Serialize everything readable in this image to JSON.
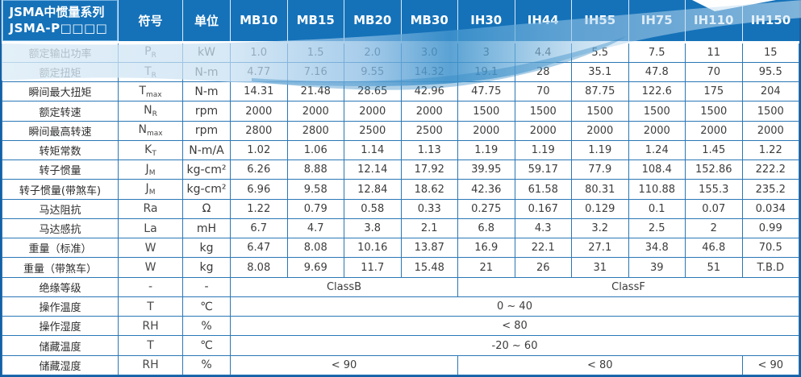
{
  "table": {
    "header": {
      "series_title_line1": "JSMA中惯量系列",
      "series_title_line2": "JSMA-P□□□□",
      "symbol_col": "符号",
      "unit_col": "单位",
      "models": [
        "MB10",
        "MB15",
        "MB20",
        "MB30",
        "IH30",
        "IH44",
        "IH55",
        "IH75",
        "IH110",
        "IH150"
      ]
    },
    "rows": [
      {
        "label": "额定输出功率",
        "symbol": "P",
        "sub": "R",
        "unit": "kW",
        "values": [
          "1.0",
          "1.5",
          "2.0",
          "3.0",
          "3",
          "4.4",
          "5.5",
          "7.5",
          "11",
          "15"
        ]
      },
      {
        "label": "额定扭矩",
        "symbol": "T",
        "sub": "R",
        "unit": "N-m",
        "values": [
          "4.77",
          "7.16",
          "9.55",
          "14.32",
          "19.1",
          "28",
          "35.1",
          "47.8",
          "70",
          "95.5"
        ]
      },
      {
        "label": "瞬间最大扭矩",
        "symbol": "T",
        "sub": "max",
        "unit": "N-m",
        "values": [
          "14.31",
          "21.48",
          "28.65",
          "42.96",
          "47.75",
          "70",
          "87.75",
          "122.6",
          "175",
          "204"
        ]
      },
      {
        "label": "额定转速",
        "symbol": "N",
        "sub": "R",
        "unit": "rpm",
        "values": [
          "2000",
          "2000",
          "2000",
          "2000",
          "1500",
          "1500",
          "1500",
          "1500",
          "1500",
          "1500"
        ]
      },
      {
        "label": "瞬间最高转速",
        "symbol": "N",
        "sub": "max",
        "unit": "rpm",
        "values": [
          "2800",
          "2800",
          "2500",
          "2500",
          "2000",
          "2000",
          "2000",
          "2000",
          "2000",
          "2000"
        ]
      },
      {
        "label": "转矩常数",
        "symbol": "K",
        "sub": "T",
        "unit": "N-m/A",
        "values": [
          "1.02",
          "1.06",
          "1.14",
          "1.13",
          "1.19",
          "1.19",
          "1.19",
          "1.24",
          "1.45",
          "1.22"
        ]
      },
      {
        "label": "转子惯量",
        "symbol": "J",
        "sub": "M",
        "unit": "kg-cm²",
        "values": [
          "6.26",
          "8.88",
          "12.14",
          "17.92",
          "39.95",
          "59.17",
          "77.9",
          "108.4",
          "152.86",
          "222.2"
        ]
      },
      {
        "label": "转子惯量(带煞车)",
        "symbol": "J",
        "sub": "M",
        "unit": "kg-cm²",
        "values": [
          "6.96",
          "9.58",
          "12.84",
          "18.62",
          "42.36",
          "61.58",
          "80.31",
          "110.88",
          "155.3",
          "235.2"
        ]
      },
      {
        "label": "马达阻抗",
        "symbol": "Ra",
        "sub": "",
        "unit": "Ω",
        "values": [
          "1.22",
          "0.79",
          "0.58",
          "0.33",
          "0.275",
          "0.167",
          "0.129",
          "0.1",
          "0.07",
          "0.034"
        ]
      },
      {
        "label": "马达感抗",
        "symbol": "La",
        "sub": "",
        "unit": "mH",
        "values": [
          "6.7",
          "4.7",
          "3.8",
          "2.1",
          "6.8",
          "4.3",
          "3.2",
          "2.5",
          "2",
          "0.99"
        ]
      },
      {
        "label": "重量（标准）",
        "symbol": "W",
        "sub": "",
        "unit": "kg",
        "values": [
          "6.47",
          "8.08",
          "10.16",
          "13.87",
          "16.9",
          "22.1",
          "27.1",
          "34.8",
          "46.8",
          "70.5"
        ]
      },
      {
        "label": "重量（带煞车）",
        "symbol": "W",
        "sub": "",
        "unit": "kg",
        "values": [
          "8.08",
          "9.69",
          "11.7",
          "15.48",
          "21",
          "26",
          "31",
          "39",
          "51",
          "T.B.D"
        ]
      },
      {
        "label": "绝缘等级",
        "symbol": "-",
        "sub": "",
        "unit": "-",
        "cells": [
          {
            "text": "ClassB",
            "span": 4
          },
          {
            "text": "ClassF",
            "span": 6
          }
        ]
      },
      {
        "label": "操作温度",
        "symbol": "T",
        "sub": "",
        "unit": "℃",
        "cells": [
          {
            "text": "0 ~ 40",
            "span": 10
          }
        ]
      },
      {
        "label": "操作湿度",
        "symbol": "RH",
        "sub": "",
        "unit": "%",
        "cells": [
          {
            "text": "< 80",
            "span": 10
          }
        ]
      },
      {
        "label": "储藏温度",
        "symbol": "T",
        "sub": "",
        "unit": "℃",
        "cells": [
          {
            "text": "-20 ~ 60",
            "span": 10
          }
        ]
      },
      {
        "label": "储藏湿度",
        "symbol": "RH",
        "sub": "",
        "unit": "%",
        "cells": [
          {
            "text": "< 90",
            "span": 4
          },
          {
            "text": "< 80",
            "span": 5
          },
          {
            "text": "< 90",
            "span": 1
          }
        ]
      }
    ]
  },
  "colors": {
    "header_bg": "#1572b9",
    "grid_border": "#2a77b6",
    "outer_border": "#1460a5",
    "header_text": "#ffffff",
    "body_text": "#3c3c3c",
    "swoosh_light": "#cfe3f4",
    "swoosh_dark": "#3e92cc"
  }
}
